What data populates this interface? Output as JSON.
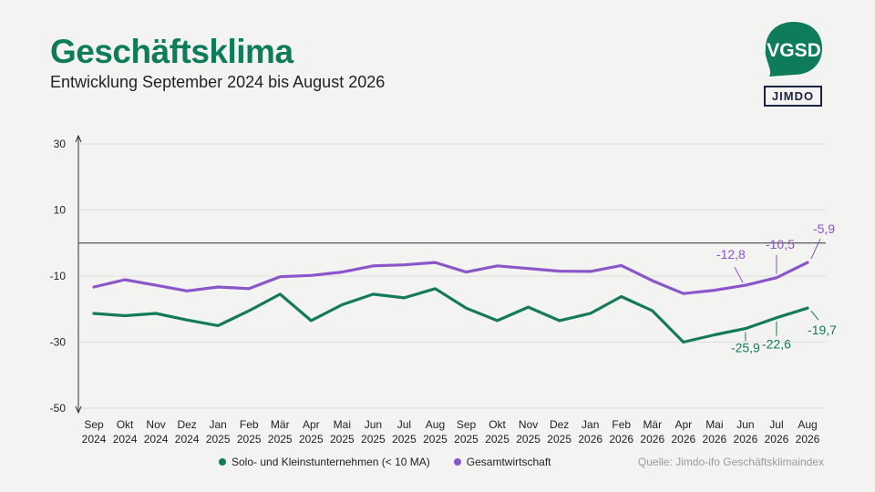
{
  "header": {
    "title": "Geschäftsklima",
    "subtitle": "Entwicklung September 2024 bis August 2026"
  },
  "logos": {
    "vgsd": "VGSD",
    "jimdo": "JIMDO"
  },
  "source": "Quelle: Jimdo-ifo Geschäftsklimaindex",
  "colors": {
    "solo": "#137a5a",
    "gesamt": "#8a56c9",
    "brand_green": "#0e7b5b",
    "grid": "#dddddd",
    "axis": "#333333"
  },
  "chart_data": {
    "type": "line",
    "title": "Geschäftsklima",
    "subtitle": "Entwicklung September 2024 bis August 2026",
    "categories": [
      [
        "Sep",
        "2024"
      ],
      [
        "Okt",
        "2024"
      ],
      [
        "Nov",
        "2024"
      ],
      [
        "Dez",
        "2024"
      ],
      [
        "Jan",
        "2025"
      ],
      [
        "Feb",
        "2025"
      ],
      [
        "Mär",
        "2025"
      ],
      [
        "Apr",
        "2025"
      ],
      [
        "Mai",
        "2025"
      ],
      [
        "Jun",
        "2025"
      ],
      [
        "Jul",
        "2025"
      ],
      [
        "Aug",
        "2025"
      ],
      [
        "Sep",
        "2025"
      ],
      [
        "Okt",
        "2025"
      ],
      [
        "Nov",
        "2025"
      ],
      [
        "Dez",
        "2025"
      ],
      [
        "Jan",
        "2026"
      ],
      [
        "Feb",
        "2026"
      ],
      [
        "Mär",
        "2026"
      ],
      [
        "Apr",
        "2026"
      ],
      [
        "Mai",
        "2026"
      ],
      [
        "Jun",
        "2026"
      ],
      [
        "Jul",
        "2026"
      ],
      [
        "Aug",
        "2026"
      ]
    ],
    "yticks": [
      "30",
      "10",
      "-10",
      "-30",
      "-50"
    ],
    "yticks_values": [
      30,
      10,
      -10,
      -30,
      -50
    ],
    "ylim": [
      -50,
      30
    ],
    "reference_line": 0,
    "grid": true,
    "legend_position": "bottom-left",
    "series": [
      {
        "key": "solo",
        "name": "Solo- und Kleinstunternehmen (< 10 MA)",
        "values": [
          -21.3,
          -22.0,
          -21.3,
          -23.3,
          -25.0,
          -20.5,
          -15.5,
          -23.5,
          -18.7,
          -15.5,
          -16.6,
          -13.8,
          -19.7,
          -23.5,
          -19.4,
          -23.5,
          -21.3,
          -16.2,
          -20.5,
          -30.0,
          -27.8,
          -25.9,
          -22.6,
          -19.7
        ],
        "data_labels": [
          {
            "index": 21,
            "text": "-25,9"
          },
          {
            "index": 22,
            "text": "-22,6"
          },
          {
            "index": 23,
            "text": "-19,7"
          }
        ]
      },
      {
        "key": "gesamt",
        "name": "Gesamtwirtschaft",
        "values": [
          -13.3,
          -11.1,
          -12.8,
          -14.5,
          -13.3,
          -13.8,
          -10.2,
          -9.8,
          -8.8,
          -6.9,
          -6.6,
          -5.9,
          -8.8,
          -6.9,
          -7.7,
          -8.5,
          -8.6,
          -6.8,
          -11.4,
          -15.3,
          -14.3,
          -12.8,
          -10.5,
          -5.9
        ],
        "data_labels": [
          {
            "index": 21,
            "text": "-12,8"
          },
          {
            "index": 22,
            "text": "-10,5"
          },
          {
            "index": 23,
            "text": "-5,9"
          }
        ]
      }
    ]
  }
}
